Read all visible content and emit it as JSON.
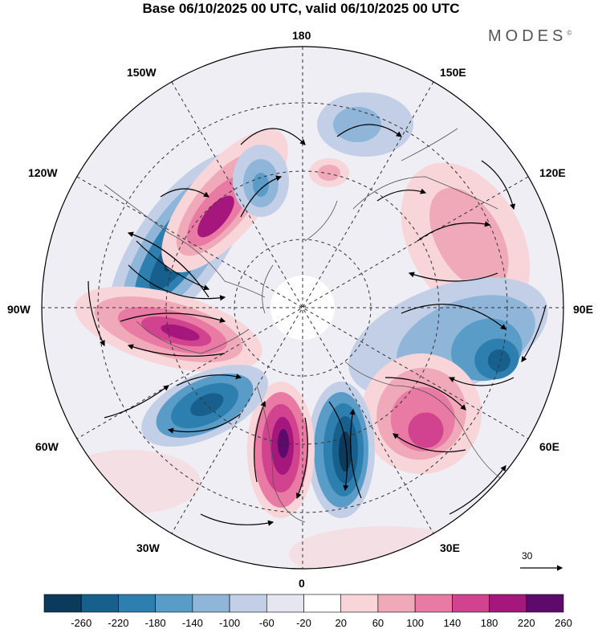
{
  "title": "Base 06/10/2025 00 UTC, valid 06/10/2025 00 UTC",
  "brand": {
    "name": "MODES",
    "mark": "©"
  },
  "map": {
    "projection": "north polar stereographic",
    "longitude_labels": {
      "top": "180",
      "bottom": "0",
      "left": "90W",
      "right": "90E",
      "upper_left_1": "150W",
      "upper_left_2": "120W",
      "upper_right_1": "150E",
      "upper_right_2": "120E",
      "lower_left_1": "60W",
      "lower_left_2": "30W",
      "lower_right_1": "60E",
      "lower_right_2": "30E"
    },
    "vector_scale": {
      "label": "30"
    },
    "anomaly_centers": [
      {
        "name": "blue-anomaly-pacific",
        "sign": "negative"
      },
      {
        "name": "red-anomaly-canada",
        "sign": "positive"
      },
      {
        "name": "blue-anomaly-alaska",
        "sign": "negative"
      },
      {
        "name": "red-anomaly-hudson",
        "sign": "positive"
      },
      {
        "name": "blue-anomaly-atlantic",
        "sign": "negative"
      },
      {
        "name": "red-anomaly-greenland-sea",
        "sign": "positive"
      },
      {
        "name": "blue-anomaly-scandinavia",
        "sign": "negative"
      },
      {
        "name": "red-anomaly-west-siberia",
        "sign": "positive"
      },
      {
        "name": "blue-anomaly-central-asia",
        "sign": "negative"
      },
      {
        "name": "red-anomaly-east-siberia",
        "sign": "positive"
      },
      {
        "name": "blue-anomaly-bering",
        "sign": "negative"
      }
    ]
  },
  "colorbar": {
    "ticks": [
      "-260",
      "-220",
      "-180",
      "-140",
      "-100",
      "-60",
      "-20",
      "20",
      "60",
      "100",
      "140",
      "180",
      "220",
      "260"
    ],
    "colors": [
      "#0b3a5c",
      "#175f8c",
      "#2d7fb0",
      "#5a9cc8",
      "#8fb6d8",
      "#c3cfe6",
      "#e6e6f0",
      "#ffffff",
      "#f7d5d8",
      "#f0a9b8",
      "#e87aa3",
      "#d2438f",
      "#a5177c",
      "#5e0a6c"
    ]
  }
}
